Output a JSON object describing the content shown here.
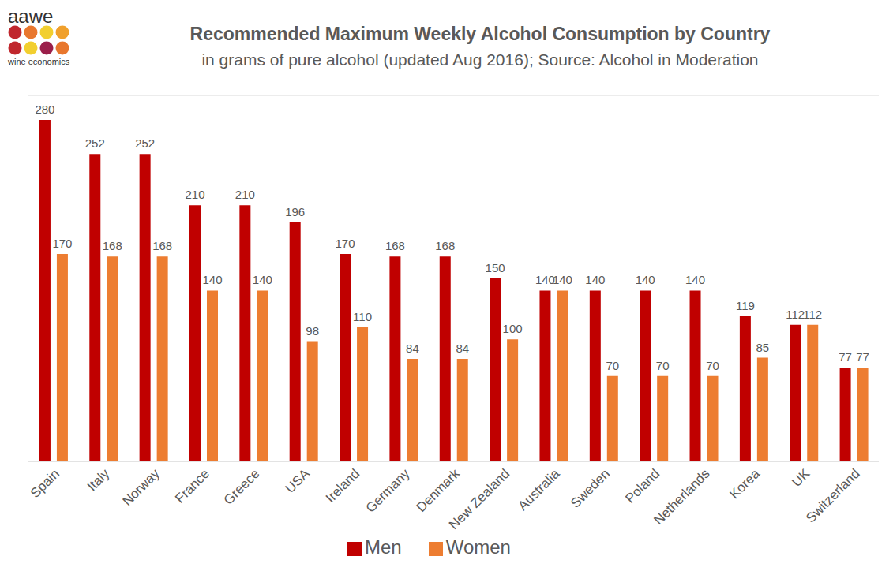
{
  "chart_data": {
    "type": "bar",
    "title": "Recommended Maximum Weekly Alcohol Consumption by Country",
    "subtitle": "in grams of pure alcohol (updated Aug 2016); Source: Alcohol in Moderation",
    "annotations": [
      "aawe",
      "wine economics"
    ],
    "categories": [
      "Spain",
      "Italy",
      "Norway",
      "France",
      "Greece",
      "USA",
      "Ireland",
      "Germany",
      "Denmark",
      "New Zealand",
      "Australia",
      "Sweden",
      "Poland",
      "Netherlands",
      "Korea",
      "UK",
      "Switzerland"
    ],
    "series": [
      {
        "name": "Men",
        "color": "#c00000",
        "values": [
          280,
          252,
          252,
          210,
          210,
          196,
          170,
          168,
          168,
          150,
          140,
          140,
          140,
          140,
          119,
          112,
          77
        ]
      },
      {
        "name": "Women",
        "color": "#ed7d31",
        "values": [
          170,
          168,
          168,
          140,
          140,
          98,
          110,
          84,
          84,
          100,
          140,
          70,
          70,
          70,
          85,
          112,
          77
        ]
      }
    ],
    "ylim": [
      0,
      300
    ],
    "yticks": [
      0,
      50,
      100,
      150,
      200,
      250,
      300
    ],
    "grid": true,
    "data_labels": true,
    "tick_labels": "x",
    "legend": "bottom"
  }
}
